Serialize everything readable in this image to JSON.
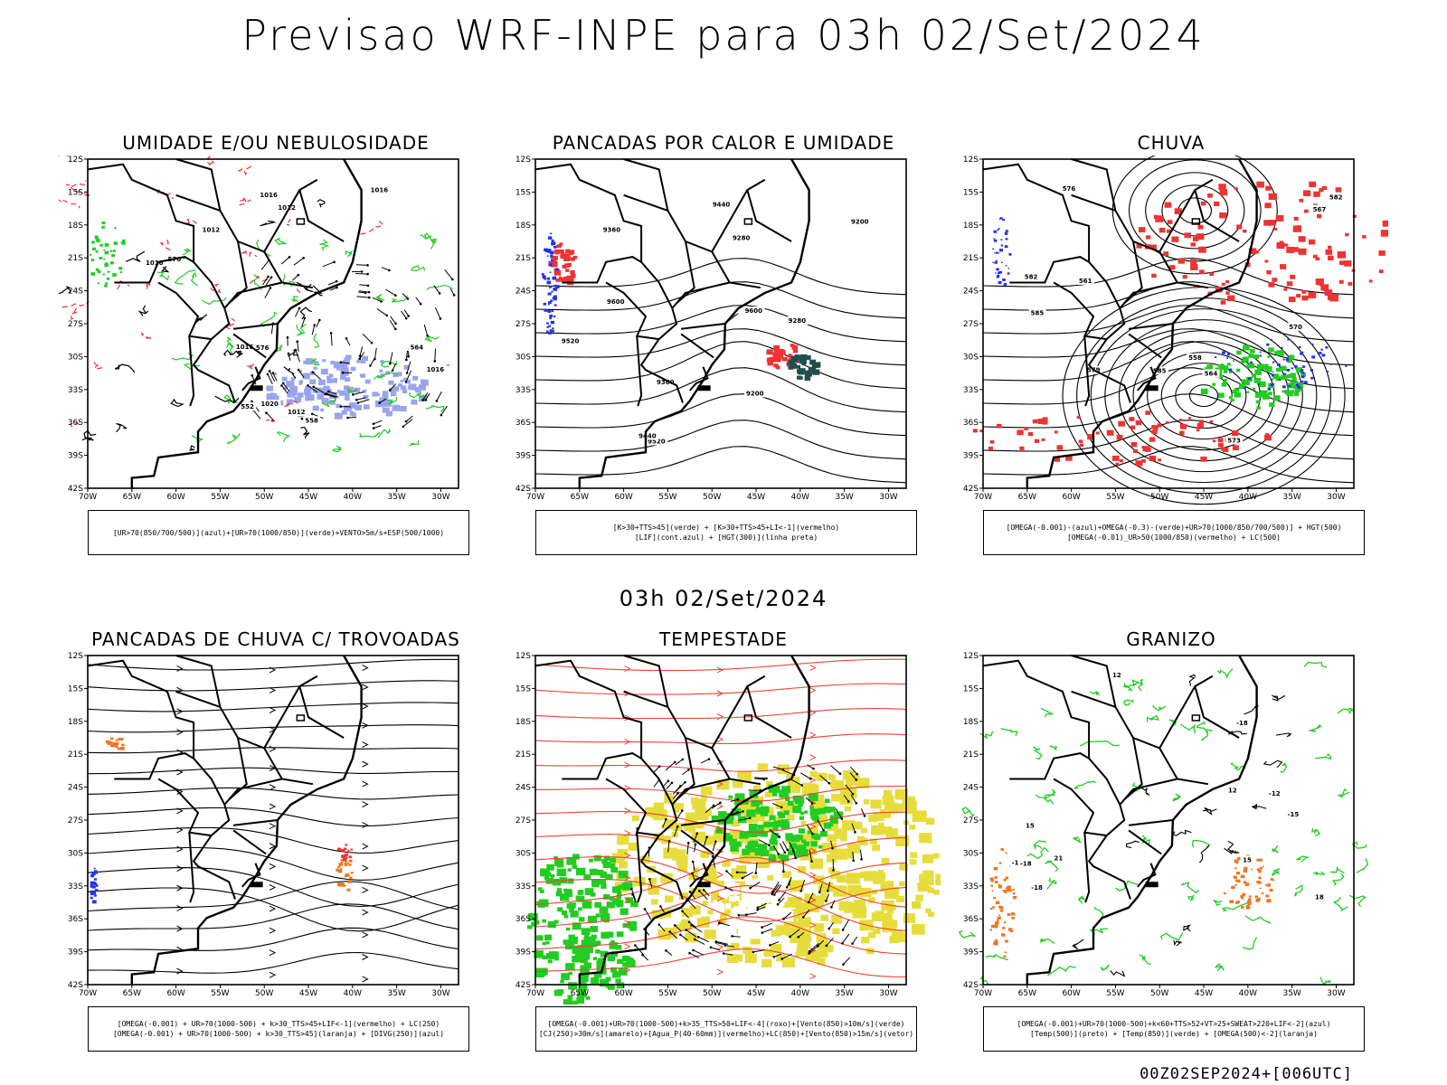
{
  "header": {
    "title": "Previsao WRF-INPE  para 03h 02/Set/2024"
  },
  "mid_label": "03h 02/Set/2024",
  "footer": "00Z02SEP2024+[006UTC]",
  "axes": {
    "lat_ticks": [
      "12S",
      "15S",
      "18S",
      "21S",
      "24S",
      "27S",
      "30S",
      "33S",
      "36S",
      "39S",
      "42S"
    ],
    "lon_ticks": [
      "70W",
      "65W",
      "60W",
      "55W",
      "50W",
      "45W",
      "40W",
      "35W",
      "30W"
    ]
  },
  "panels": [
    {
      "title": "UMIDADE E/OU NEBULOSIDADE",
      "legend": [
        "[UR>70(850/700/500)](azul)+[UR>70(1000/850)](verde)+VENTO>5m/s+ESP(500/1000)"
      ],
      "contour_labels": [
        "1012",
        "1016",
        "1016",
        "1016",
        "1012",
        "1016",
        "1020",
        "576",
        "570",
        "564",
        "558",
        "552",
        "1016",
        "1012"
      ]
    },
    {
      "title": "PANCADAS POR CALOR E UMIDADE",
      "legend": [
        "[K>30+TTS>45](verde) + [K>30+TTS>45+LI<-1](vermelho)",
        "[LIF](cont.azul) + [HGT(300)](linha preta)"
      ],
      "contour_labels": [
        "9600",
        "9520",
        "9440",
        "9600",
        "9520",
        "9440",
        "9360",
        "9280",
        "9200",
        "9280",
        "9360",
        "9200"
      ]
    },
    {
      "title": "CHUVA",
      "legend": [
        "[OMEGA(-0.001)-(azul)+OMEGA(-0.3)-(verde)+UR>70(1000/850/700/500)] + HGT(500)",
        "[OMEGA(-0.01)_UR>50(1000/850)(vermelho) + LC(500)"
      ],
      "contour_labels": [
        "585",
        "585",
        "582",
        "582",
        "579",
        "576",
        "573",
        "570",
        "567",
        "564",
        "561",
        "558"
      ]
    },
    {
      "title": "PANCADAS DE CHUVA C/ TROVOADAS",
      "legend": [
        "[OMEGA(-0.001) + UR>70(1000-500) + k>30_TTS>45+LIF<-1](vermelho) + LC(250)",
        "[OMEGA(-0.001) + UR>70(1000-500) + k>30_TTS>45](laranja) + [DIVG(250)](azul)"
      ],
      "contour_labels": []
    },
    {
      "title": "TEMPESTADE",
      "legend": [
        "[OMEGA(-0.001)+UR>70(1000-500)+k>35_TTS>50+LIF<-4](roxo)+[Vento(850)>10m/s](verde)",
        "[CJ(250)>30m/s](amarelo)+[Agua_P(40-60mm)](vermelho)+LC(850)+[Vento(850)>15m/s](vetor)"
      ],
      "contour_labels": []
    },
    {
      "title": "GRANIZO",
      "legend": [
        "[OMEGA(-0.001)+UR>70(1000-500)+k<60+TTS>52+VT>25+SWEAT>220+LIF<-2](azul)",
        "[Temp(500)](preto) + [Temp(850)](verde) + [OMEGA(500)<-2](laranja)"
      ],
      "contour_labels": [
        "-18",
        "-15",
        "-12",
        "15",
        "18",
        "12",
        "21",
        "-18",
        "-15",
        "12",
        "15",
        "-18"
      ]
    }
  ],
  "colors": {
    "coast": "#000000",
    "blue_shade": "#9aa4ee",
    "green_contour": "#22cc22",
    "red_dashed": "#ee3333",
    "red_fill": "#ee3333",
    "dark_teal": "#1f4f4f",
    "yellow_fill": "#e6dd3c",
    "green_fill": "#22cc22",
    "orange": "#ee7722",
    "blue_pts": "#2233ee",
    "red_stream": "#ee4433"
  }
}
